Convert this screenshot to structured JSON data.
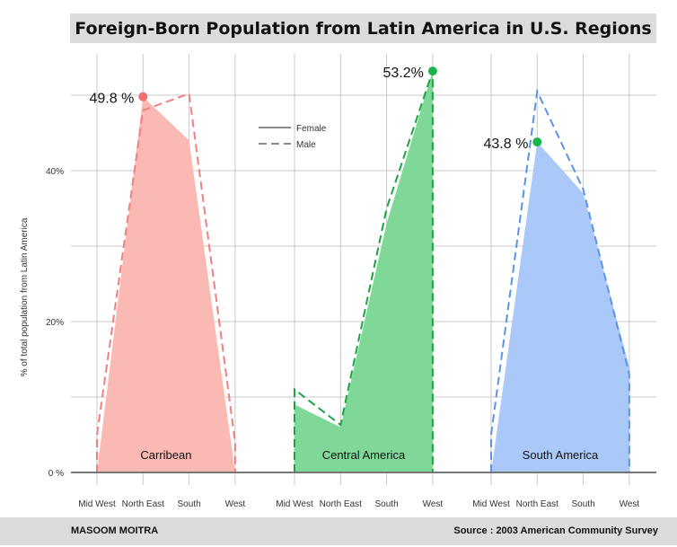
{
  "title": "Foreign-Born Population from Latin America in U.S. Regions",
  "footer": {
    "author": "MASOOM MOITRA",
    "source": "Source :  2003 American Community Survey"
  },
  "chart_data": {
    "type": "area",
    "title": "Foreign-Born Population from Latin America in U.S. Regions",
    "ylabel": "% of total population from Latin America",
    "ylim": [
      0,
      55
    ],
    "yticks": [
      0,
      20,
      40
    ],
    "ytick_labels": [
      "0 %",
      "20%",
      "40%"
    ],
    "grid": true,
    "legend": {
      "position": "top-center",
      "entries": [
        {
          "label": "Female",
          "style": "solid"
        },
        {
          "label": "Male",
          "style": "dashed"
        }
      ]
    },
    "categories": [
      "Mid West",
      "North East",
      "South",
      "West"
    ],
    "panels": [
      {
        "name": "Carribean",
        "color": "#f08080",
        "fill": "#fbb9b4",
        "female": [
          0,
          49.8,
          44,
          0
        ],
        "male": [
          5,
          48,
          50.2,
          4
        ],
        "annotation": {
          "label": "49.8 %",
          "index": 1,
          "value": 49.8,
          "marker_color": "#f07070"
        }
      },
      {
        "name": "Central America",
        "color": "#1aa541",
        "fill": "#7fd898",
        "female": [
          9,
          6,
          33,
          53.2
        ],
        "male": [
          11,
          6.3,
          35,
          53.2
        ],
        "annotation": {
          "label": "53.2%",
          "index": 3,
          "value": 53.2,
          "marker_color": "#1ab34a"
        }
      },
      {
        "name": "South America",
        "color": "#5b94e6",
        "fill": "#aac9f8",
        "female": [
          0,
          43.8,
          37,
          14
        ],
        "male": [
          5,
          50.5,
          37.5,
          13
        ],
        "annotation": {
          "label": "43.8 %",
          "index": 1,
          "value": 43.8,
          "marker_color": "#1ab34a"
        }
      }
    ]
  }
}
